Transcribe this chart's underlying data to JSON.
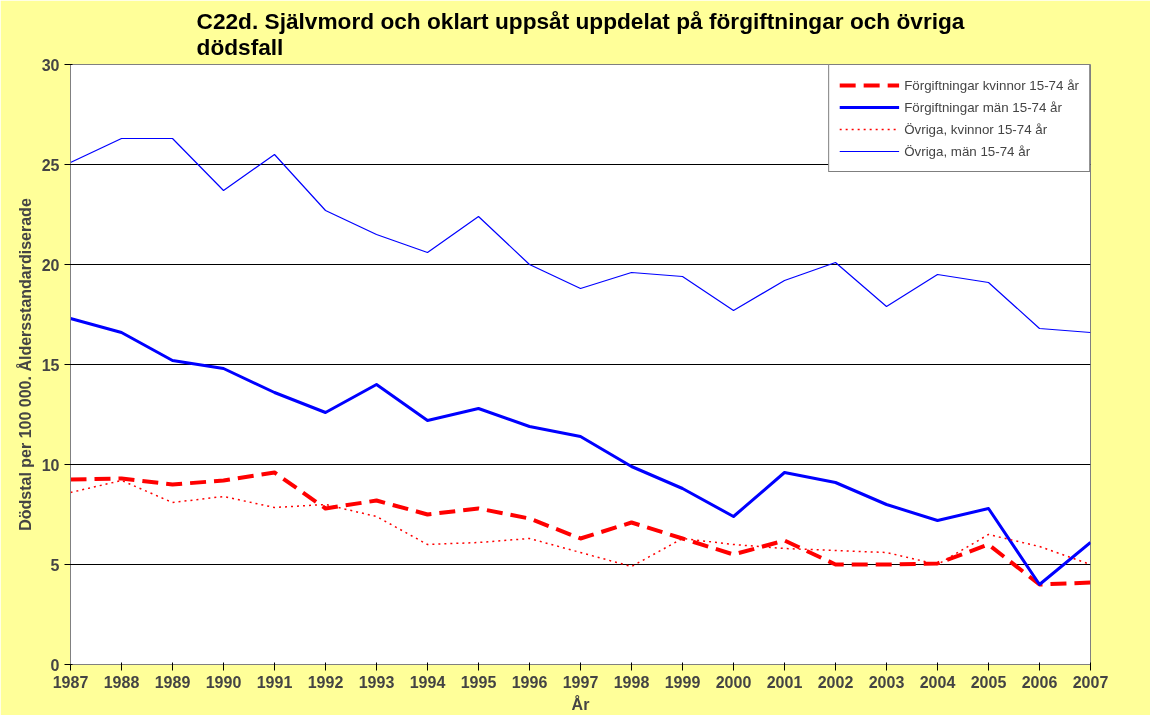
{
  "chart_data": {
    "type": "line",
    "title": "C22d. Självmord och oklart uppsåt uppdelat på förgiftningar och övriga\ndödsfall",
    "xlabel": "År",
    "ylabel": "Dödstal per 100 000. Åldersstandardiserade",
    "x": [
      1987,
      1988,
      1989,
      1990,
      1991,
      1992,
      1993,
      1994,
      1995,
      1996,
      1997,
      1998,
      1999,
      2000,
      2001,
      2002,
      2003,
      2004,
      2005,
      2006,
      2007
    ],
    "xlim": [
      1987,
      2007
    ],
    "xticks": [
      1987,
      1988,
      1989,
      1990,
      1991,
      1992,
      1993,
      1994,
      1995,
      1996,
      1997,
      1998,
      1999,
      2000,
      2001,
      2002,
      2003,
      2004,
      2005,
      2006,
      2007
    ],
    "ylim": [
      0,
      30
    ],
    "yticks": [
      0,
      5,
      10,
      15,
      20,
      25,
      30
    ],
    "grid": "y",
    "legend": "top right",
    "marker": "none",
    "series": [
      {
        "name": "Förgiftningar kvinnor 15-74 år",
        "color": "#ff0000",
        "line_style": "dashed",
        "values": [
          9.25,
          9.3,
          9.0,
          9.2,
          9.6,
          7.8,
          8.2,
          7.5,
          7.8,
          7.3,
          6.3,
          7.1,
          6.3,
          5.5,
          6.2,
          5.0,
          5.0,
          5.05,
          6.0,
          4.0,
          4.1
        ]
      },
      {
        "name": "Förgiftningar män 15-74 år",
        "color": "#0000ff",
        "line_style": "solid",
        "values": [
          17.3,
          16.6,
          15.2,
          14.8,
          13.6,
          12.6,
          14.0,
          12.2,
          12.8,
          11.9,
          11.4,
          9.9,
          8.8,
          7.4,
          9.6,
          9.1,
          8.0,
          7.2,
          7.8,
          4.0,
          6.1
        ]
      },
      {
        "name": "Övriga, kvinnor 15-74 år",
        "color": "#ff0000",
        "line_style": "dotted",
        "values": [
          8.6,
          9.2,
          8.1,
          8.4,
          7.85,
          8.0,
          7.4,
          6.0,
          6.1,
          6.3,
          5.6,
          4.9,
          6.3,
          6.0,
          5.8,
          5.7,
          5.6,
          5.0,
          6.5,
          5.9,
          5.0
        ]
      },
      {
        "name": "Övriga, män 15-74 år",
        "color": "#0000ff",
        "line_style": "solid",
        "values": [
          25.1,
          26.3,
          26.3,
          23.7,
          25.5,
          22.7,
          21.5,
          20.6,
          22.4,
          20.0,
          18.8,
          19.6,
          19.4,
          17.7,
          19.2,
          20.1,
          17.9,
          19.5,
          19.1,
          16.8,
          16.6
        ]
      }
    ]
  }
}
